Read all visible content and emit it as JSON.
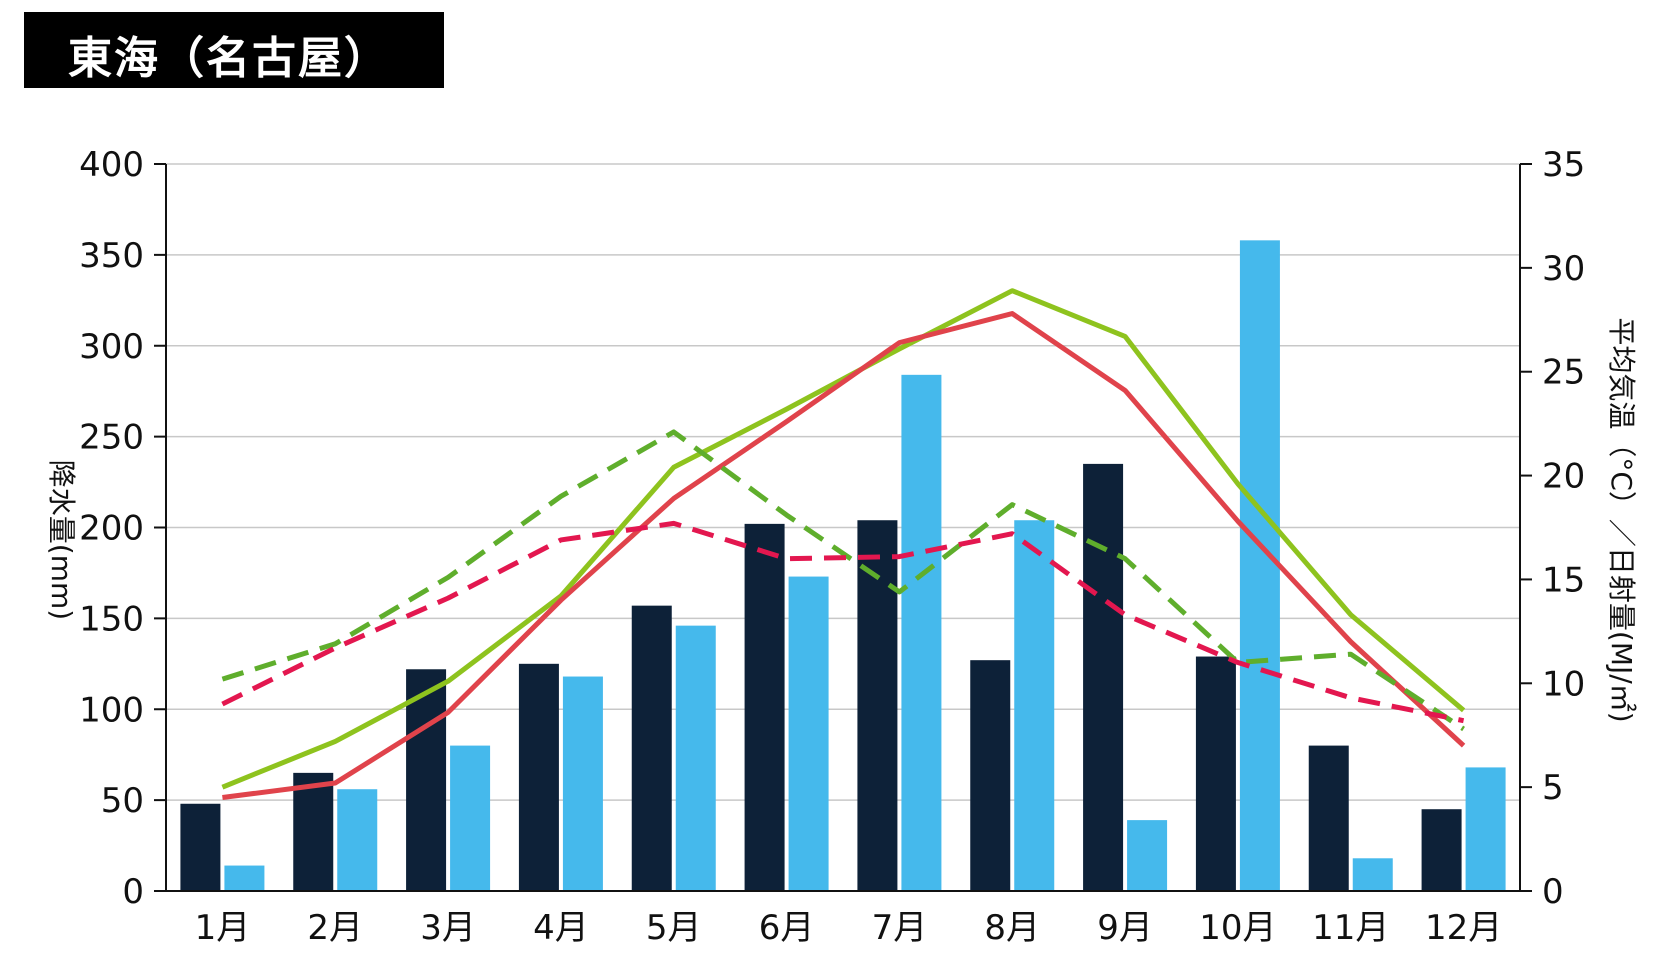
{
  "title": "東海（名古屋）",
  "chart_data": {
    "type": "bar",
    "title": "東海（名古屋）",
    "categories": [
      "1月",
      "2月",
      "3月",
      "4月",
      "5月",
      "6月",
      "7月",
      "8月",
      "9月",
      "10月",
      "11月",
      "12月"
    ],
    "ylabel_left": "降水量(mm)",
    "ylabel_right": "平均気温（°C）／日射量(MJ/㎡)",
    "ylim_left": [
      0,
      400
    ],
    "yticks_left": [
      "0",
      "50",
      "100",
      "150",
      "200",
      "250",
      "300",
      "350",
      "400"
    ],
    "ylim_right": [
      0,
      35
    ],
    "yticks_right": [
      "0",
      "5",
      "10",
      "15",
      "20",
      "25",
      "30",
      "35"
    ],
    "grid": true,
    "bar_series": [
      {
        "axis": "left",
        "color": "#0d2138",
        "values": [
          48,
          65,
          122,
          125,
          157,
          202,
          204,
          127,
          235,
          129,
          80,
          45
        ]
      },
      {
        "axis": "left",
        "color": "#45b9ec",
        "values": [
          14,
          56,
          80,
          118,
          146,
          173,
          284,
          204,
          39,
          358,
          18,
          68
        ]
      }
    ],
    "line_series": [
      {
        "axis": "right",
        "color": "#8ec31e",
        "style": "solid",
        "values": [
          5.0,
          7.2,
          10.1,
          14.2,
          20.4,
          23.2,
          26.1,
          28.9,
          26.7,
          19.6,
          13.3,
          8.7
        ]
      },
      {
        "axis": "right",
        "color": "#e0434b",
        "style": "solid",
        "values": [
          4.5,
          5.2,
          8.6,
          14.0,
          18.9,
          22.6,
          26.4,
          27.8,
          24.1,
          17.8,
          12.0,
          7.0
        ]
      },
      {
        "axis": "right",
        "color": "#5fae2c",
        "style": "dashed",
        "values": [
          10.2,
          11.9,
          15.1,
          19.0,
          22.1,
          18.1,
          14.4,
          18.6,
          16.0,
          11.0,
          11.4,
          7.8
        ]
      },
      {
        "axis": "right",
        "color": "#e3174f",
        "style": "dashed",
        "values": [
          9.0,
          11.7,
          14.1,
          16.9,
          17.7,
          16.0,
          16.1,
          17.2,
          13.3,
          11.0,
          9.3,
          8.2
        ]
      }
    ]
  }
}
